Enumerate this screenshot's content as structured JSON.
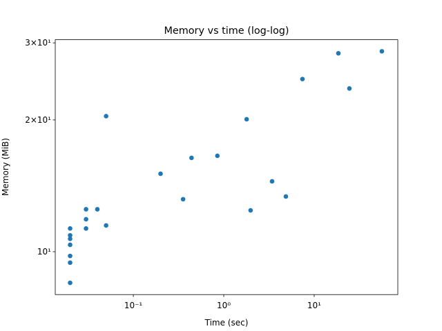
{
  "chart_data": {
    "type": "scatter",
    "title": "Memory vs time (log-log)",
    "x_label": "Time (sec)",
    "y_label": "Memory (MiB)",
    "xscale": "log",
    "yscale": "log",
    "grid": false,
    "xlim": [
      0.0137,
      84
    ],
    "ylim": [
      7.98,
      30.5
    ],
    "xticks": [
      {
        "value": 0.1,
        "label": "10⁻¹"
      },
      {
        "value": 1,
        "label": "10⁰"
      },
      {
        "value": 10,
        "label": "10¹"
      }
    ],
    "yticks": [
      {
        "value": 10,
        "label": "10¹"
      },
      {
        "value": 20,
        "label": "2×10¹"
      },
      {
        "value": 30,
        "label": "3×10¹"
      }
    ],
    "series": [
      {
        "color": "#1f77b4",
        "x": [
          0.02,
          0.02,
          0.02,
          0.02,
          0.02,
          0.02,
          0.02,
          0.03,
          0.03,
          0.03,
          0.04,
          0.05,
          0.05,
          0.2,
          0.355,
          0.44,
          0.85,
          1.79,
          1.98,
          3.42,
          4.86,
          7.41,
          18.5,
          24.5,
          56
        ],
        "values": [
          8.49,
          9.44,
          9.78,
          10.37,
          10.7,
          10.9,
          11.3,
          11.3,
          11.86,
          12.5,
          12.5,
          11.48,
          20.4,
          15.07,
          13.18,
          16.38,
          16.56,
          20.07,
          12.43,
          14.48,
          13.37,
          24.8,
          28.4,
          23.6,
          28.7
        ]
      }
    ]
  }
}
